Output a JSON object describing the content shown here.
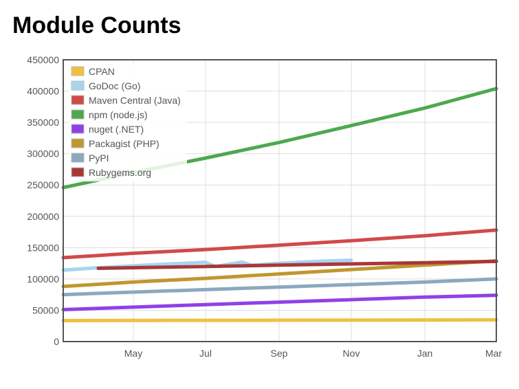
{
  "page": {
    "title": "Module Counts"
  },
  "chart_data": {
    "type": "line",
    "title": "Module Counts",
    "xlabel": "",
    "ylabel": "",
    "x_ticks": [
      "May",
      "Jul",
      "Sep",
      "Nov",
      "Jan",
      "Mar"
    ],
    "y_ticks": [
      "450000",
      "400000",
      "350000",
      "300000",
      "250000",
      "200000",
      "150000",
      "100000",
      "50000",
      "0"
    ],
    "ylim": [
      0,
      450000
    ],
    "grid": true,
    "legend_position": "top-left",
    "series": [
      {
        "name": "CPAN",
        "color": "#f0c040",
        "points": [
          [
            "Mar",
            33500
          ],
          [
            "May",
            33700
          ],
          [
            "Jul",
            33900
          ],
          [
            "Sep",
            34100
          ],
          [
            "Nov",
            34300
          ],
          [
            "Jan",
            34500
          ],
          [
            "Mar",
            34700
          ]
        ]
      },
      {
        "name": "GoDoc (Go)",
        "color": "#a8d4f0",
        "points": [
          [
            "Mar",
            114000
          ],
          [
            "Apr",
            118000
          ],
          [
            "May",
            121000
          ],
          [
            "Jun",
            124000
          ],
          [
            "Jul",
            126500
          ],
          [
            "Jul",
            120000
          ],
          [
            "Aug",
            127000
          ],
          [
            "Aug",
            122000
          ],
          [
            "Sep",
            125000
          ],
          [
            "Oct",
            128000
          ],
          [
            "Nov",
            130000
          ]
        ]
      },
      {
        "name": "Maven Central (Java)",
        "color": "#d04a4a",
        "points": [
          [
            "Mar",
            134000
          ],
          [
            "May",
            141000
          ],
          [
            "Jul",
            147000
          ],
          [
            "Sep",
            154000
          ],
          [
            "Nov",
            161000
          ],
          [
            "Jan",
            169000
          ],
          [
            "Mar",
            178000
          ]
        ]
      },
      {
        "name": "npm (node.js)",
        "color": "#4ea84e",
        "points": [
          [
            "Mar",
            246000
          ],
          [
            "May",
            270000
          ],
          [
            "Jul",
            293000
          ],
          [
            "Sep",
            318000
          ],
          [
            "Nov",
            345000
          ],
          [
            "Jan",
            373000
          ],
          [
            "Mar",
            404000
          ]
        ]
      },
      {
        "name": "nuget (.NET)",
        "color": "#9040e8",
        "points": [
          [
            "Mar",
            51000
          ],
          [
            "May",
            55000
          ],
          [
            "Jul",
            59000
          ],
          [
            "Sep",
            63000
          ],
          [
            "Nov",
            67000
          ],
          [
            "Jan",
            71000
          ],
          [
            "Mar",
            74000
          ]
        ]
      },
      {
        "name": "Packagist (PHP)",
        "color": "#c0962e",
        "points": [
          [
            "Mar",
            88000
          ],
          [
            "May",
            95000
          ],
          [
            "Jul",
            101000
          ],
          [
            "Sep",
            108000
          ],
          [
            "Nov",
            115000
          ],
          [
            "Jan",
            122000
          ],
          [
            "Mar",
            129000
          ]
        ]
      },
      {
        "name": "PyPI",
        "color": "#8aa8c0",
        "points": [
          [
            "Mar",
            75000
          ],
          [
            "May",
            79000
          ],
          [
            "Jul",
            83000
          ],
          [
            "Sep",
            87000
          ],
          [
            "Nov",
            91000
          ],
          [
            "Jan",
            95000
          ],
          [
            "Mar",
            100000
          ]
        ]
      },
      {
        "name": "Rubygems.org",
        "color": "#a83838",
        "points": [
          [
            "Apr",
            117000
          ],
          [
            "May",
            118000
          ],
          [
            "Jul",
            120000
          ],
          [
            "Sep",
            122000
          ],
          [
            "Nov",
            124000
          ],
          [
            "Jan",
            126000
          ],
          [
            "Mar",
            128000
          ]
        ]
      }
    ]
  }
}
